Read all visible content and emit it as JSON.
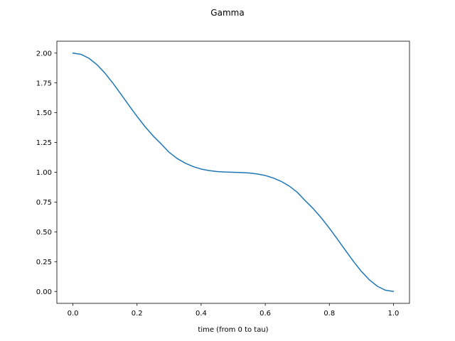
{
  "chart_data": {
    "type": "line",
    "title": "Gamma",
    "xlabel": "time (from 0 to tau)",
    "ylabel": "",
    "xlim": [
      -0.05,
      1.05
    ],
    "ylim": [
      -0.1,
      2.1
    ],
    "xticks": [
      0.0,
      0.2,
      0.4,
      0.6,
      0.8,
      1.0
    ],
    "xtick_labels": [
      "0.0",
      "0.2",
      "0.4",
      "0.6",
      "0.8",
      "1.0"
    ],
    "yticks": [
      0.0,
      0.25,
      0.5,
      0.75,
      1.0,
      1.25,
      1.5,
      1.75,
      2.0
    ],
    "ytick_labels": [
      "0.00",
      "0.25",
      "0.50",
      "0.75",
      "1.00",
      "1.25",
      "1.50",
      "1.75",
      "2.00"
    ],
    "grid": false,
    "series": [
      {
        "color": "#1f77b4",
        "x": [
          0.0,
          0.025,
          0.05,
          0.075,
          0.1,
          0.125,
          0.15,
          0.175,
          0.2,
          0.225,
          0.25,
          0.275,
          0.3,
          0.325,
          0.35,
          0.375,
          0.4,
          0.425,
          0.45,
          0.475,
          0.5,
          0.525,
          0.55,
          0.575,
          0.6,
          0.625,
          0.65,
          0.675,
          0.7,
          0.725,
          0.75,
          0.775,
          0.8,
          0.825,
          0.85,
          0.875,
          0.9,
          0.925,
          0.95,
          0.975,
          1.0
        ],
        "y": [
          2.0,
          1.99,
          1.957,
          1.903,
          1.832,
          1.747,
          1.655,
          1.561,
          1.469,
          1.383,
          1.306,
          1.239,
          1.168,
          1.116,
          1.077,
          1.048,
          1.027,
          1.014,
          1.006,
          1.002,
          1.0,
          0.998,
          0.994,
          0.986,
          0.973,
          0.952,
          0.923,
          0.884,
          0.832,
          0.761,
          0.694,
          0.617,
          0.531,
          0.439,
          0.345,
          0.253,
          0.168,
          0.097,
          0.043,
          0.01,
          0.0
        ]
      }
    ]
  }
}
